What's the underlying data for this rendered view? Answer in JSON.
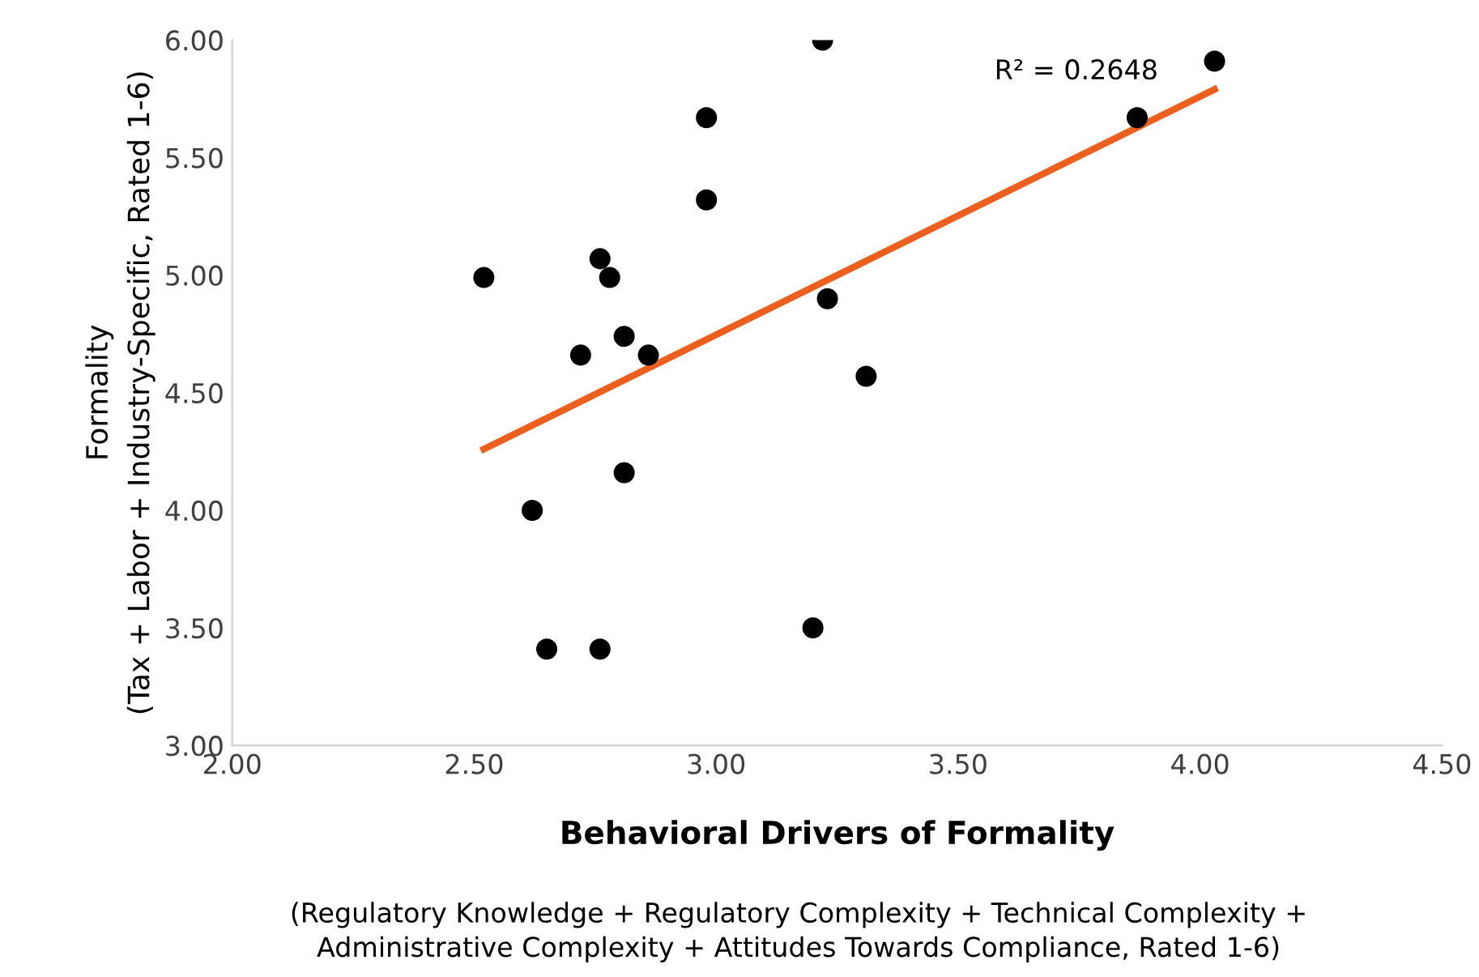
{
  "chart_data": {
    "type": "scatter",
    "xlabel": "Behavioral Drivers of Formality",
    "ylabel": "Formality\n(Tax + Labor + Industry-Specific, Rated 1-6)",
    "annotations": [
      "(Regulatory Knowledge + Regulatory Complexity + Technical Complexity +\nAdministrative Complexity + Attitudes Towards Compliance, Rated 1-6)",
      "R² = 0.2648"
    ],
    "series": [
      {
        "color": "#000000",
        "marker": "circle",
        "x": [
          2.52,
          2.76,
          2.78,
          2.72,
          2.81,
          2.86,
          2.98,
          2.98,
          3.22,
          3.23,
          3.31,
          3.2,
          2.62,
          2.81,
          2.65,
          2.76,
          3.87,
          4.03
        ],
        "values": [
          4.99,
          5.07,
          4.99,
          4.66,
          4.74,
          4.66,
          5.67,
          5.32,
          6.0,
          4.9,
          4.57,
          3.5,
          4.0,
          4.16,
          3.41,
          3.41,
          5.67,
          5.91
        ]
      },
      {
        "type": "line",
        "color": "#ed5f1c",
        "x": [
          2.52,
          4.03
        ],
        "values": [
          4.26,
          5.79
        ]
      }
    ],
    "xlim": [
      2.0,
      4.5
    ],
    "xticks": [
      {
        "value": 2.0,
        "label": "2.00"
      },
      {
        "value": 2.5,
        "label": "2.50"
      },
      {
        "value": 3.0,
        "label": "3.00"
      },
      {
        "value": 3.5,
        "label": "3.50"
      },
      {
        "value": 4.0,
        "label": "4.00"
      },
      {
        "value": 4.5,
        "label": "4.50"
      }
    ],
    "ylim": [
      3.0,
      6.0
    ],
    "yticks": [
      {
        "value": 3.0,
        "label": "3.00"
      },
      {
        "value": 3.5,
        "label": "3.50"
      },
      {
        "value": 4.0,
        "label": "4.00"
      },
      {
        "value": 4.5,
        "label": "4.50"
      },
      {
        "value": 5.0,
        "label": "5.00"
      },
      {
        "value": 5.5,
        "label": "5.50"
      },
      {
        "value": 6.0,
        "label": "6.00"
      }
    ],
    "grid": false,
    "legend": false
  }
}
